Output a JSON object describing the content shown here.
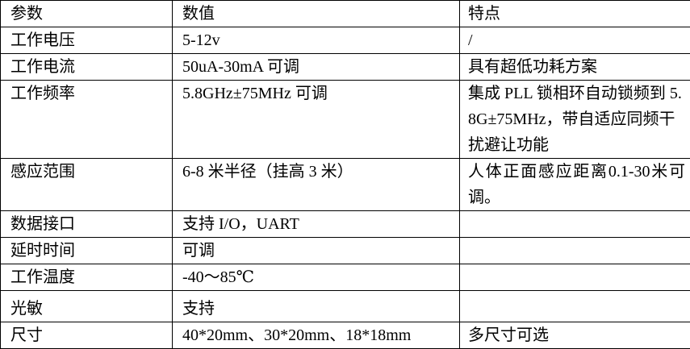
{
  "table": {
    "header": [
      "参数",
      "数值",
      "特点"
    ],
    "rows": [
      [
        "工作电压",
        "5-12v",
        "/"
      ],
      [
        "工作电流",
        "50uA-30mA 可调",
        "具有超低功耗方案"
      ],
      [
        "工作频率",
        "5.8GHz±75MHz 可调",
        "集成 PLL 锁相环自动锁频到 5.8G±75MHz，带自适应同频干扰避让功能"
      ],
      [
        "感应范围",
        "6-8 米半径（挂高 3 米）",
        "人体正面感应距离0.1-30米可调。"
      ],
      [
        "数据接口",
        "支持 I/O，UART"
      ],
      [
        "延时时间",
        "可调"
      ],
      [
        "工作温度",
        "-40～85℃"
      ],
      [
        "光敏",
        "支持"
      ],
      [
        "尺寸",
        "40*20mm、30*20mm、18*18mm",
        "多尺寸可选"
      ]
    ]
  }
}
